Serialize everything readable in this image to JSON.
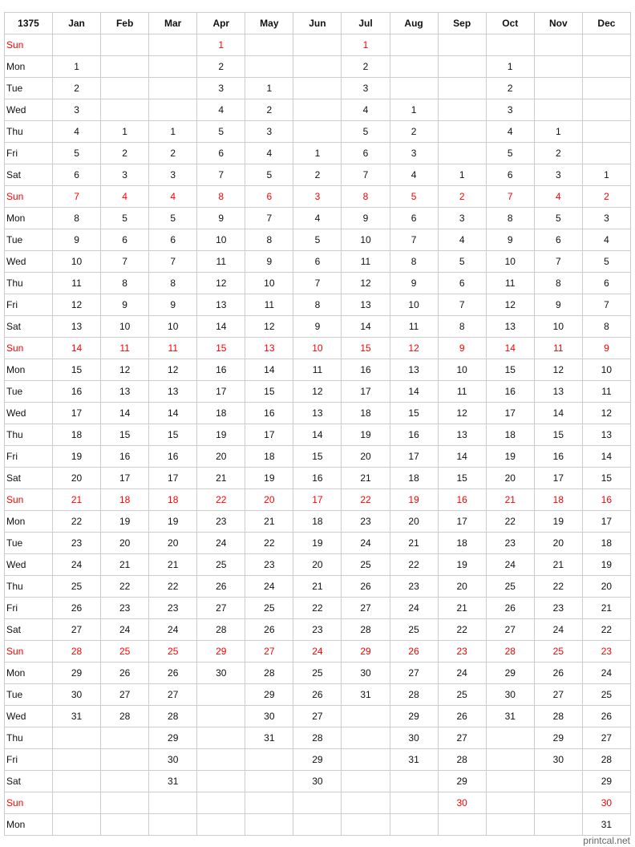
{
  "year": "1375",
  "weekdays": [
    "Sun",
    "Mon",
    "Tue",
    "Wed",
    "Thu",
    "Fri",
    "Sat",
    "Sun",
    "Mon",
    "Tue",
    "Wed",
    "Thu",
    "Fri",
    "Sat",
    "Sun",
    "Mon",
    "Tue",
    "Wed",
    "Thu",
    "Fri",
    "Sat",
    "Sun",
    "Mon",
    "Tue",
    "Wed",
    "Thu",
    "Fri",
    "Sat",
    "Sun",
    "Mon",
    "Tue",
    "Wed",
    "Thu",
    "Fri",
    "Sat",
    "Sun",
    "Mon"
  ],
  "months": [
    {
      "name": "Jan",
      "first_weekday": "Mon",
      "length": 31
    },
    {
      "name": "Feb",
      "first_weekday": "Thu",
      "length": 28
    },
    {
      "name": "Mar",
      "first_weekday": "Thu",
      "length": 31
    },
    {
      "name": "Apr",
      "first_weekday": "Sun",
      "length": 30
    },
    {
      "name": "May",
      "first_weekday": "Tue",
      "length": 31
    },
    {
      "name": "Jun",
      "first_weekday": "Fri",
      "length": 30
    },
    {
      "name": "Jul",
      "first_weekday": "Sun",
      "length": 31
    },
    {
      "name": "Aug",
      "first_weekday": "Wed",
      "length": 31
    },
    {
      "name": "Sep",
      "first_weekday": "Sat",
      "length": 30
    },
    {
      "name": "Oct",
      "first_weekday": "Mon",
      "length": 31
    },
    {
      "name": "Nov",
      "first_weekday": "Thu",
      "length": 30
    },
    {
      "name": "Dec",
      "first_weekday": "Sat",
      "length": 31
    }
  ],
  "colors": {
    "sunday": "#ff0000",
    "border": "#cccccc",
    "text": "#111111"
  },
  "footer": "printcal.net"
}
